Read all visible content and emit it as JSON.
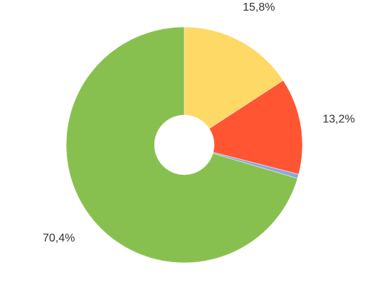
{
  "chart_data": {
    "type": "donut",
    "values": [
      15.8,
      13.2,
      0.6,
      70.4
    ],
    "value_labels": [
      "15,8%",
      "13,2%",
      null,
      "70,4%"
    ],
    "colors": [
      "#ffd966",
      "#ff5533",
      "#8eaadb",
      "#88c050"
    ]
  }
}
